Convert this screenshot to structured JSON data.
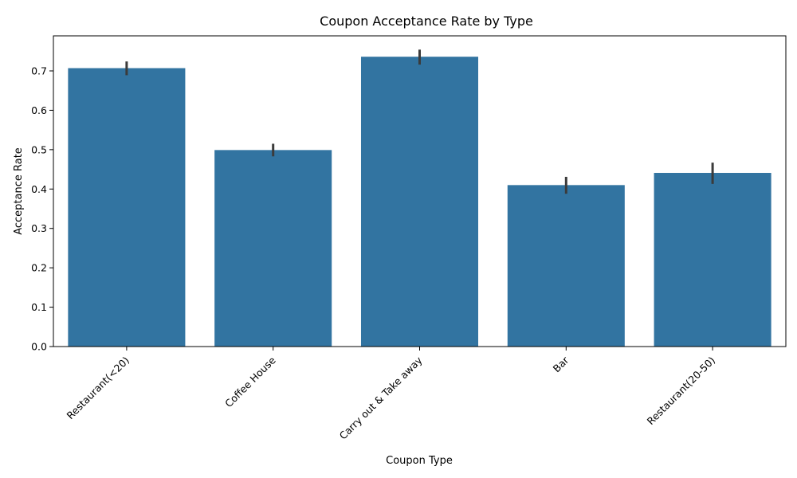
{
  "chart_data": {
    "type": "bar",
    "title": "Coupon Acceptance Rate by Type",
    "xlabel": "Coupon Type",
    "ylabel": "Acceptance Rate",
    "categories": [
      "Restaurant(<20)",
      "Coffee House",
      "Carry out & Take away",
      "Bar",
      "Restaurant(20-50)"
    ],
    "values": [
      0.707,
      0.499,
      0.736,
      0.41,
      0.441
    ],
    "error_low": [
      0.689,
      0.483,
      0.716,
      0.388,
      0.413
    ],
    "error_high": [
      0.724,
      0.515,
      0.754,
      0.431,
      0.467
    ],
    "yticks": [
      "0.0",
      "0.1",
      "0.2",
      "0.3",
      "0.4",
      "0.5",
      "0.6",
      "0.7"
    ],
    "ylim": [
      0,
      0.789
    ],
    "bar_color": "#3274a1",
    "error_color": "#3b3b3b",
    "grid": false,
    "legend": "none"
  }
}
